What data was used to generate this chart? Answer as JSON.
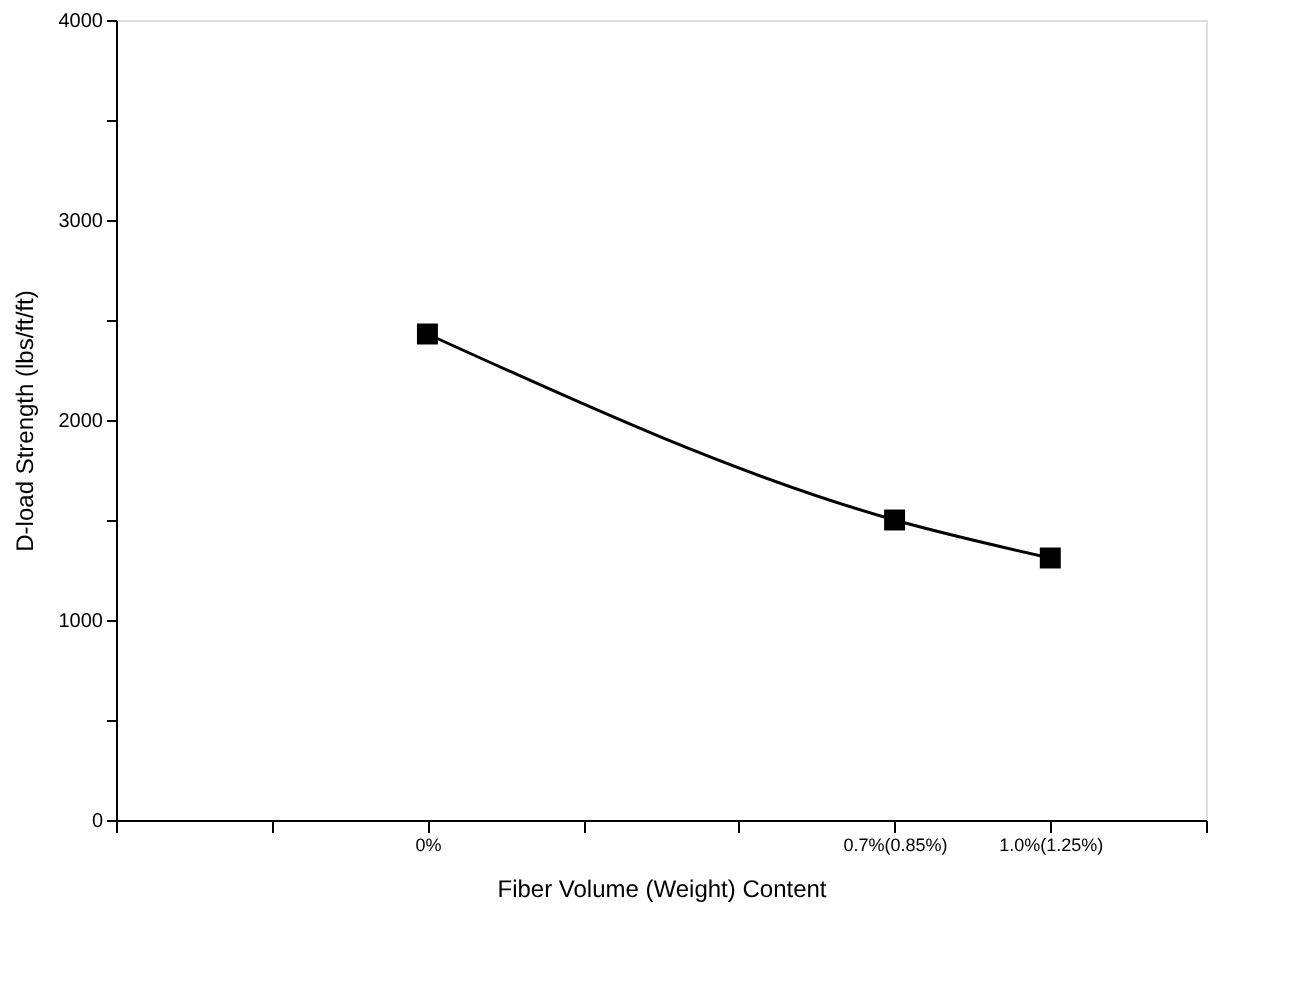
{
  "chart_data": {
    "type": "line",
    "xlabel": "Fiber Volume (Weight) Content",
    "ylabel": "D-load Strength (lbs/ft/ft)",
    "categories": [
      null,
      null,
      "0%",
      null,
      null,
      "0.7%(0.85%)",
      "1.0%(1.25%)",
      null
    ],
    "series": [
      {
        "color": "#000000",
        "values": [
          null,
          null,
          2430,
          null,
          null,
          1500,
          1310,
          null
        ]
      }
    ],
    "ylim": [
      0,
      4000
    ],
    "yticks": [
      0,
      {
        "value": 500,
        "label": null
      },
      1000,
      {
        "value": 1500,
        "label": null
      },
      2000,
      {
        "value": 2500,
        "label": null
      },
      3000,
      {
        "value": 3500,
        "label": null
      },
      4000
    ],
    "marker": "square",
    "line_style": "solid",
    "grid": false
  }
}
